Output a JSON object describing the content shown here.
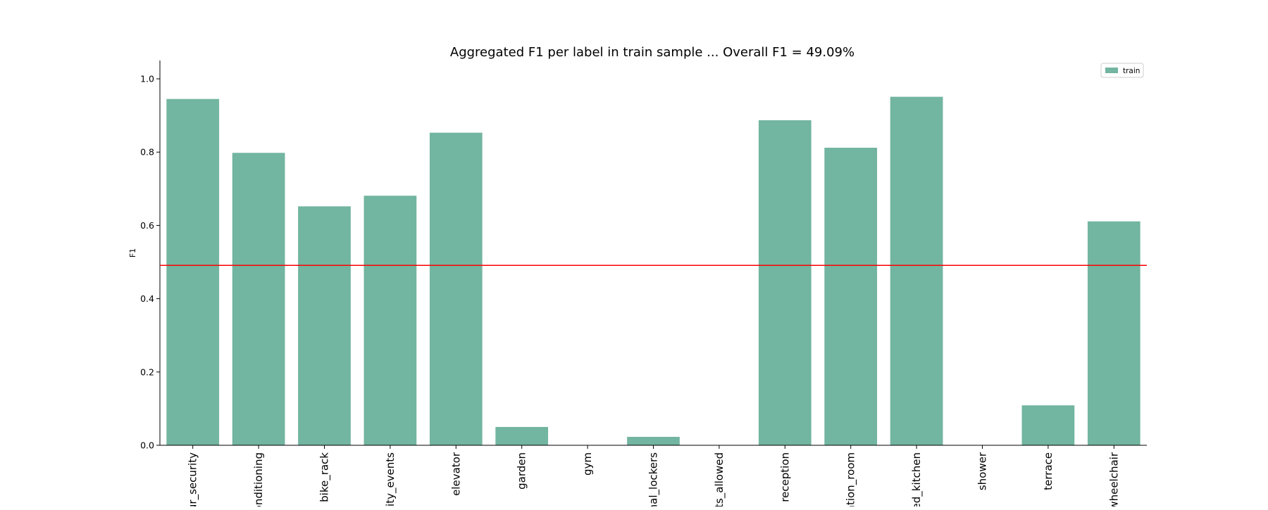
{
  "chart_data": {
    "type": "bar",
    "title": "Aggregated F1 per label in train sample ... Overall F1 = 49.09%",
    "xlabel": "",
    "ylabel": "F1",
    "categories": [
      "ur_security",
      "onditioning",
      "bike_rack",
      "nity_events",
      "elevator",
      "garden",
      "gym",
      "nal_lockers",
      "ts_allowed",
      "reception",
      "ation_room",
      "ed_kitchen",
      "shower",
      "terrace",
      "wheelchair"
    ],
    "series": [
      {
        "name": "train",
        "values": [
          0.945,
          0.798,
          0.652,
          0.681,
          0.853,
          0.05,
          0.0,
          0.023,
          0.0,
          0.887,
          0.812,
          0.951,
          0.0,
          0.109,
          0.611
        ]
      }
    ],
    "ylim": [
      0,
      1.05
    ],
    "yticks": [
      "0.0",
      "0.2",
      "0.4",
      "0.6",
      "0.8",
      "1.0"
    ],
    "reference_line": {
      "value": 0.4909,
      "color": "#ff0000"
    },
    "legend": {
      "position": "top-right"
    },
    "grid": false,
    "colors": {
      "bar": "#72b5a0"
    }
  }
}
